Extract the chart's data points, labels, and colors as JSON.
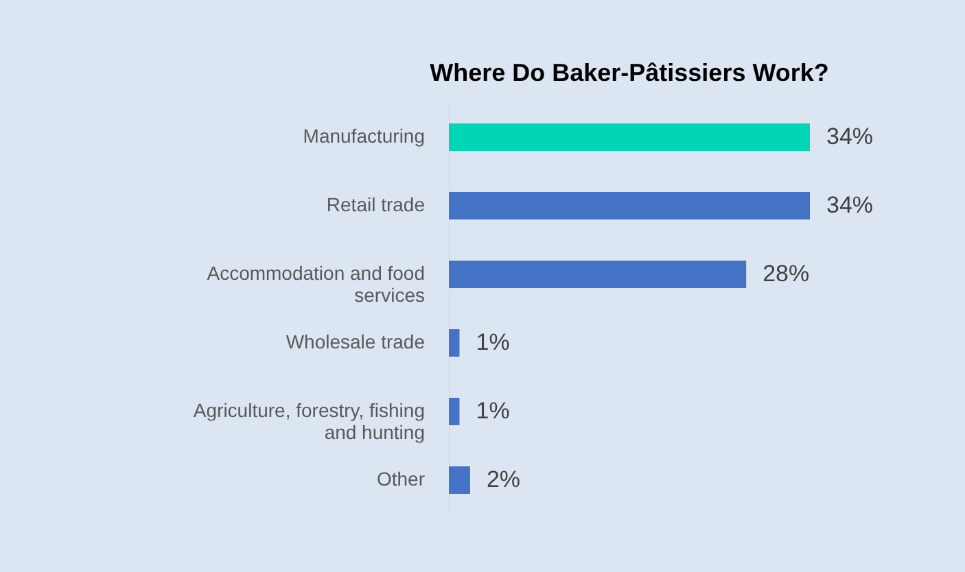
{
  "chart_data": {
    "type": "bar",
    "orientation": "horizontal",
    "title": "Where Do Baker-Pâtissiers Work?",
    "categories": [
      "Manufacturing",
      "Retail trade",
      "Accommodation and food services",
      "Wholesale trade",
      "Agriculture, forestry, fishing and hunting",
      "Other"
    ],
    "values": [
      34,
      34,
      28,
      1,
      1,
      2
    ],
    "colors": [
      "#00d5b5",
      "#4472c4",
      "#4472c4",
      "#4472c4",
      "#4472c4",
      "#4472c4"
    ],
    "value_labels": [
      "34%",
      "34%",
      "28%",
      "1%",
      "1%",
      "2%"
    ]
  }
}
